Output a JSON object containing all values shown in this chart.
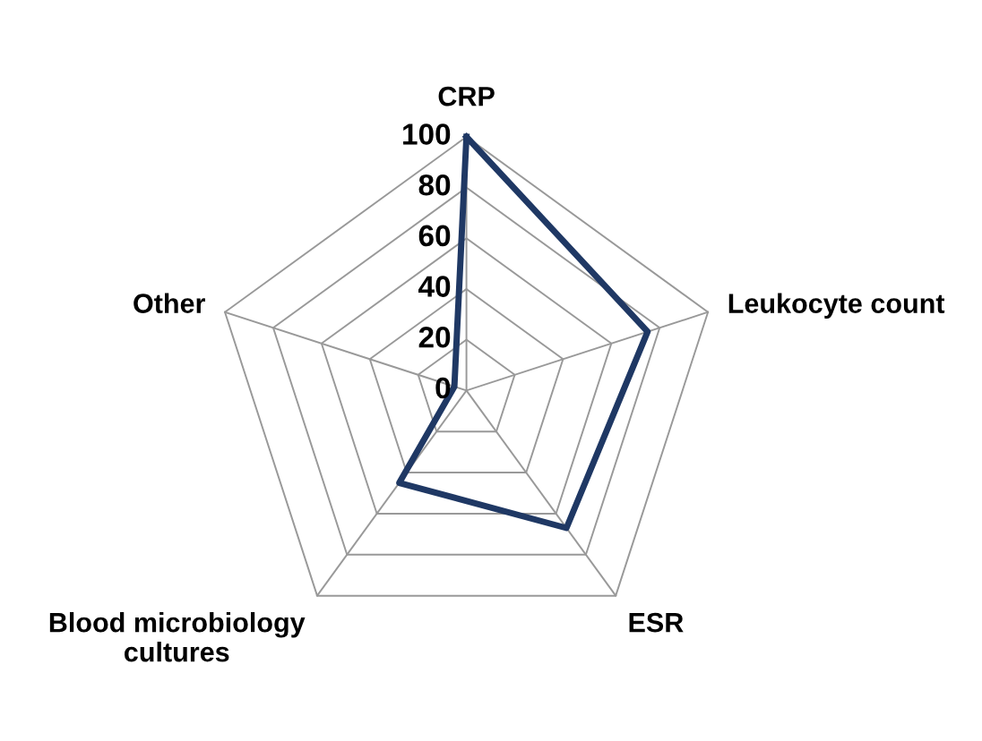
{
  "chart_data": {
    "type": "radar",
    "categories": [
      "CRP",
      "Leukocyte count",
      "ESR",
      "Blood microbiology cultures",
      "Other"
    ],
    "series": [
      {
        "color": "#1f3864",
        "values": [
          100,
          75,
          67,
          45,
          5
        ]
      }
    ],
    "ylim": [
      0,
      100
    ],
    "yticks": [
      0,
      20,
      40,
      60,
      80,
      100
    ],
    "grid": true,
    "marker": "none",
    "line_style": "solid"
  }
}
